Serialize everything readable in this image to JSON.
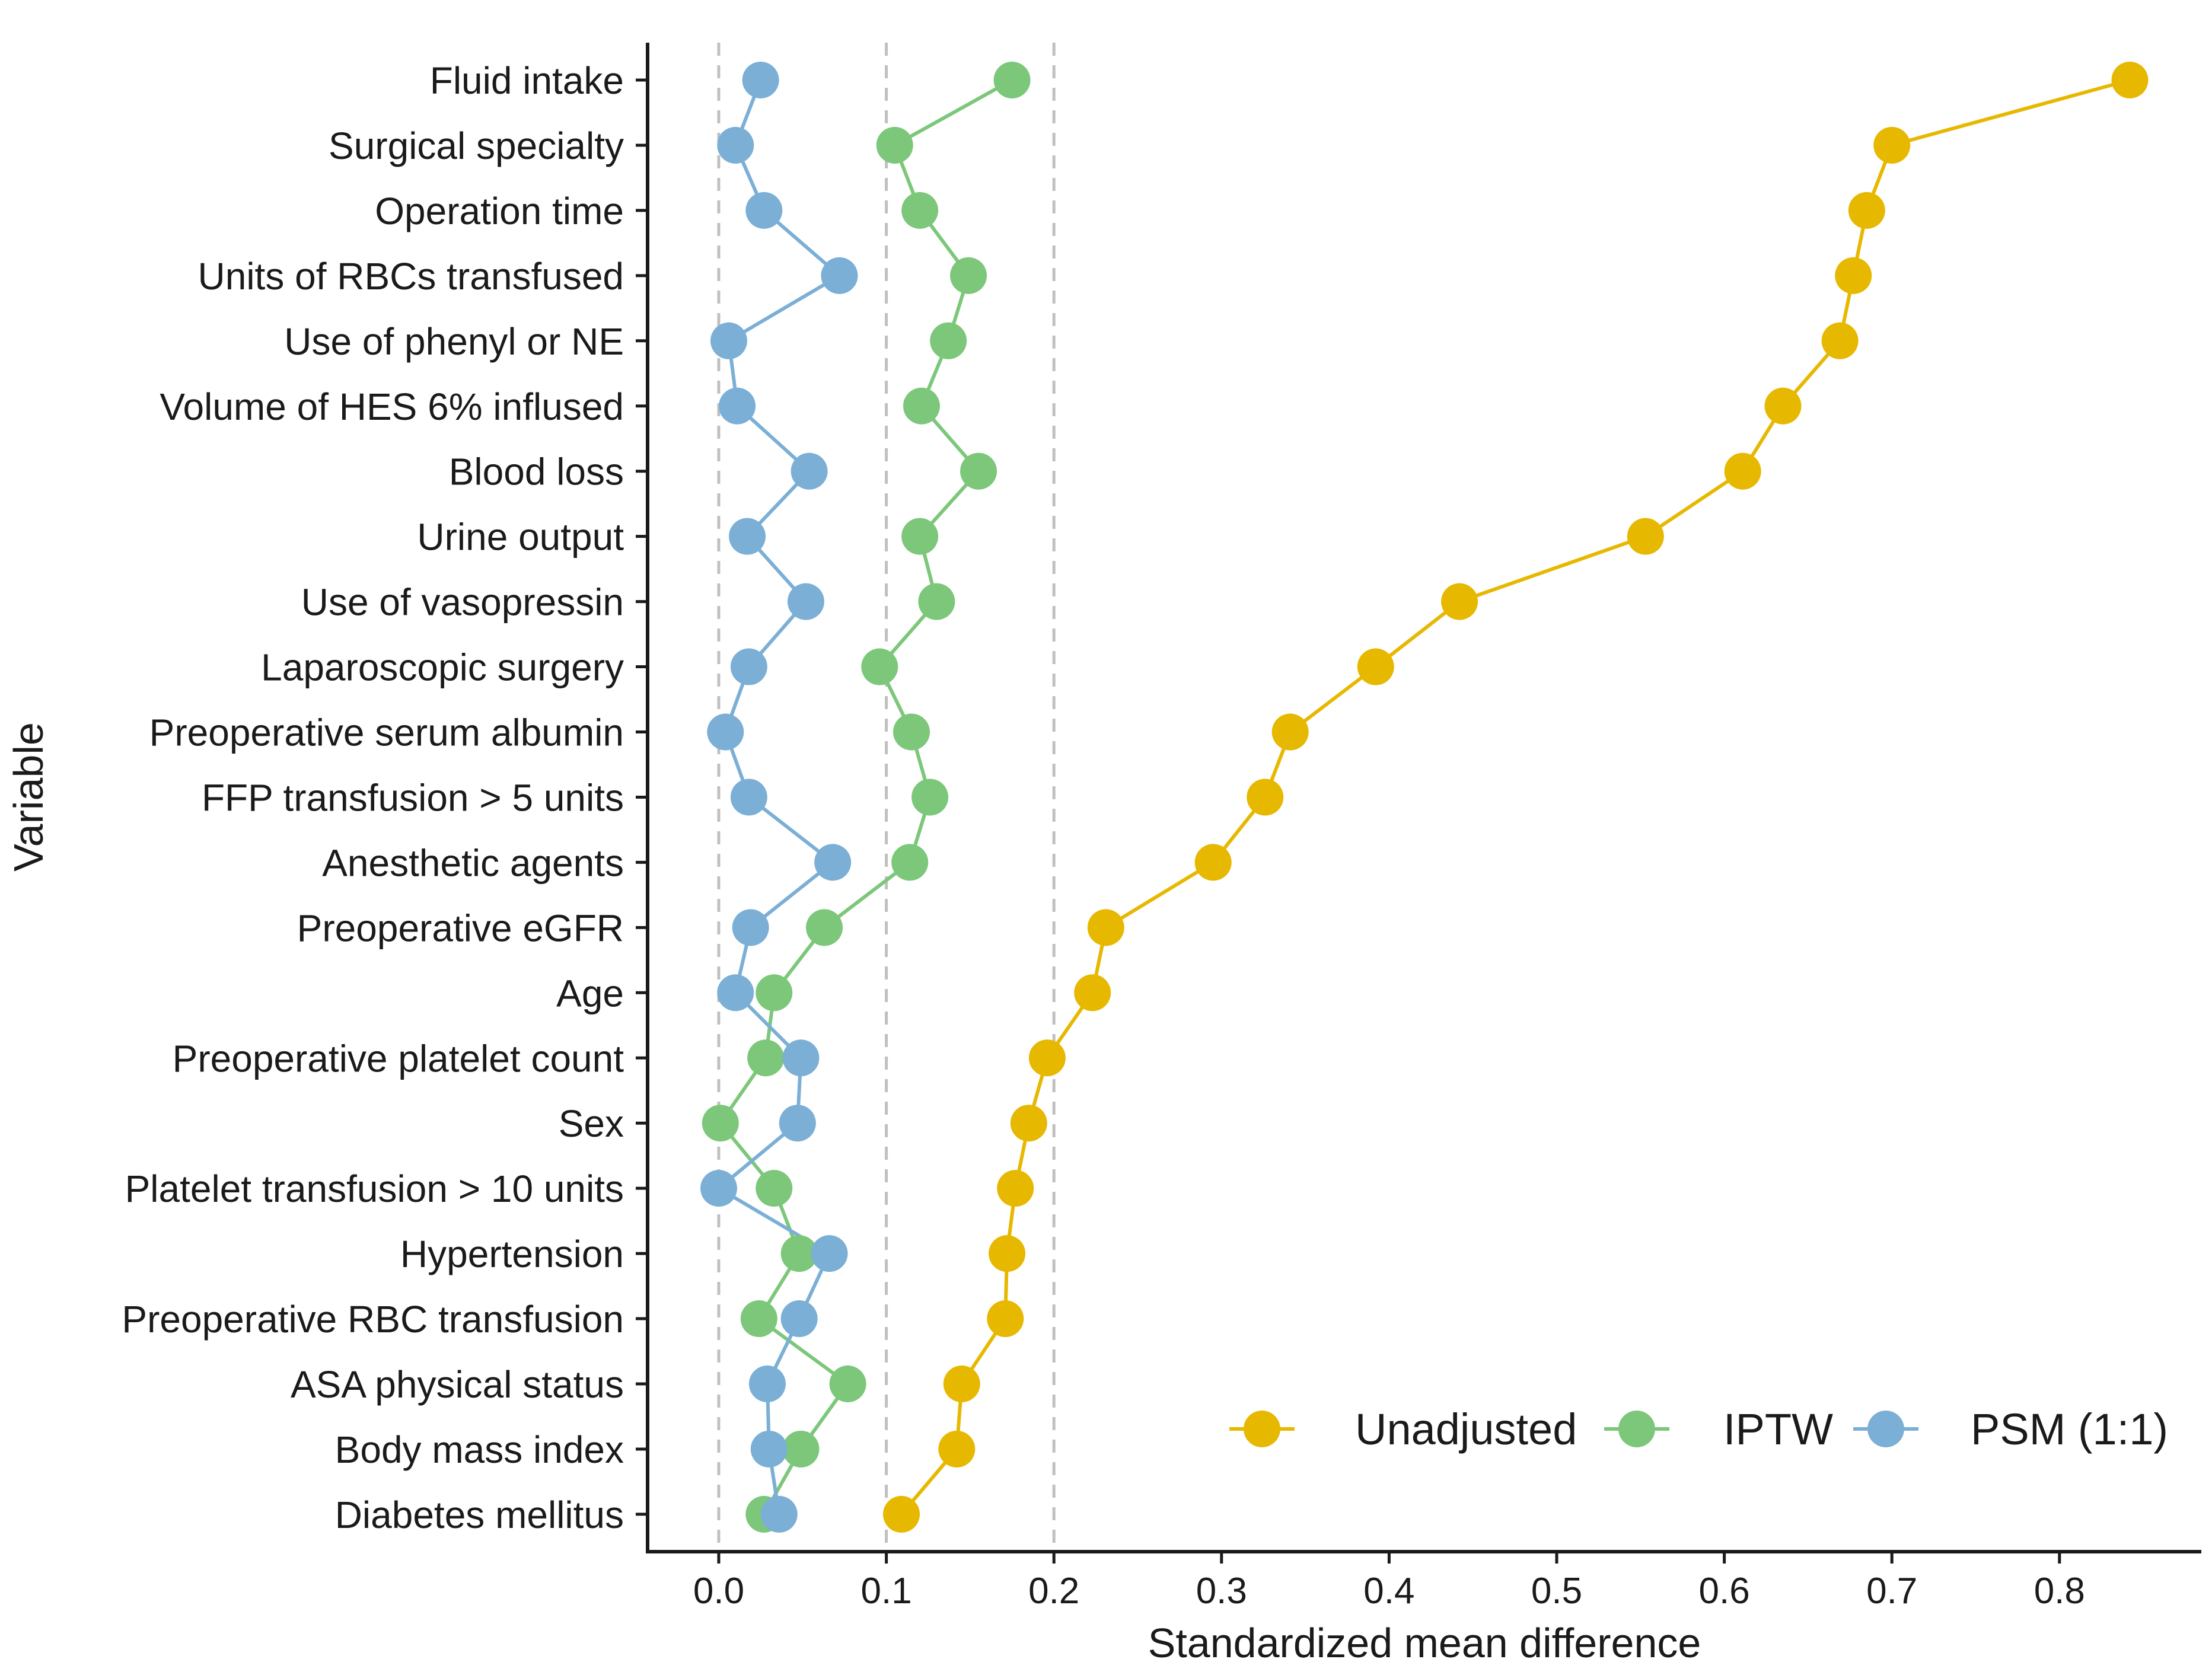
{
  "chart_data": {
    "type": "line",
    "title": "",
    "xlabel": "Standardized mean difference",
    "ylabel": "Variable",
    "xlim": [
      -0.04,
      0.88
    ],
    "xticks": [
      0.0,
      0.1,
      0.2,
      0.3,
      0.4,
      0.5,
      0.6,
      0.7,
      0.8
    ],
    "xtick_labels": [
      "0.0",
      "0.1",
      "0.2",
      "0.3",
      "0.4",
      "0.5",
      "0.6",
      "0.7",
      "0.8"
    ],
    "reference_lines": [
      0.0,
      0.1,
      0.2
    ],
    "legend_position": "bottom-right",
    "categories": [
      "Fluid intake",
      "Surgical specialty",
      "Operation time",
      "Units of RBCs transfused",
      "Use of phenyl or NE",
      "Volume of HES 6% inflused",
      "Blood loss",
      "Urine output",
      "Use of vasopressin",
      "Laparoscopic surgery",
      "Preoperative serum albumin",
      "FFP transfusion > 5 units",
      "Anesthetic agents",
      "Preoperative eGFR",
      "Age",
      "Preoperative platelet count",
      "Sex",
      "Platelet transfusion > 10 units",
      "Hypertension",
      "Preoperative RBC transfusion",
      "ASA physical status",
      "Body mass index",
      "Diabetes mellitus"
    ],
    "series": [
      {
        "name": "Unadjusted",
        "color": "#E7B800",
        "values": [
          0.842,
          0.7,
          0.685,
          0.677,
          0.669,
          0.635,
          0.611,
          0.553,
          0.442,
          0.392,
          0.341,
          0.326,
          0.295,
          0.231,
          0.223,
          0.196,
          0.185,
          0.177,
          0.172,
          0.171,
          0.145,
          0.142,
          0.109
        ]
      },
      {
        "name": "IPTW",
        "color": "#7CC77A",
        "values": [
          0.175,
          0.105,
          0.12,
          0.149,
          0.137,
          0.121,
          0.155,
          0.12,
          0.13,
          0.096,
          0.115,
          0.126,
          0.114,
          0.063,
          0.033,
          0.028,
          0.001,
          0.033,
          0.048,
          0.024,
          0.077,
          0.049,
          0.027
        ]
      },
      {
        "name": "PSM (1:1)",
        "color": "#7BAFD6",
        "values": [
          0.025,
          0.01,
          0.027,
          0.072,
          0.006,
          0.011,
          0.054,
          0.017,
          0.052,
          0.018,
          0.004,
          0.018,
          0.068,
          0.019,
          0.01,
          0.049,
          0.047,
          0.0,
          0.066,
          0.048,
          0.029,
          0.03,
          0.036
        ]
      }
    ]
  }
}
